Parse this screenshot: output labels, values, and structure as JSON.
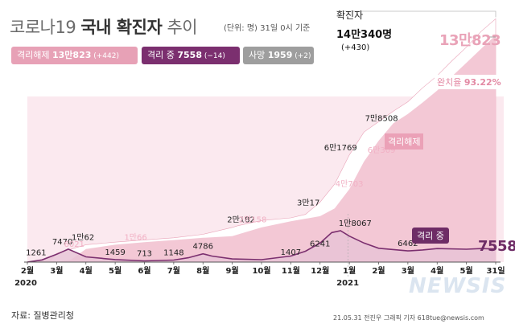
{
  "header": {
    "title_light1": "코로나19 ",
    "title_bold": "국내 확진자",
    "title_light2": " 추이",
    "subtitle": "(단위: 명)  31일 0시 기준"
  },
  "legend": {
    "released": {
      "label": "격리해제 ",
      "value": "13만823",
      "diff": " (+442)",
      "color": "#e7a1b6"
    },
    "isolated": {
      "label": "격리 중 ",
      "value": "7558",
      "diff": " (−14)",
      "color": "#7b2f6f"
    },
    "deaths": {
      "label": "사망 ",
      "value": "1959",
      "diff": " (+2)",
      "color": "#9e9e9e"
    }
  },
  "confirmed": {
    "label": "확진자",
    "value": "14만340명",
    "diff": "(+430)"
  },
  "released_total": "13만823",
  "recovery_ratio": {
    "label": "완치율 ",
    "value": "93.22%"
  },
  "released_series_tag": "격리해제",
  "isolated_series_tag": "격리 중",
  "isolated_end": "7558",
  "source": "자료: 질병관리청",
  "credit": "21.05.31  전진우 그래픽 기자  618tue@newsis.com",
  "watermark": "NEWSIS",
  "chart_data": {
    "type": "area",
    "x_ticks": [
      "2월",
      "3월",
      "4월",
      "5월",
      "6월",
      "7월",
      "8월",
      "9월",
      "10월",
      "11월",
      "12월",
      "1월",
      "2월",
      "3월",
      "4월",
      "5월",
      "31일"
    ],
    "year_labels": [
      "2020",
      "2021"
    ],
    "series": [
      {
        "name": "확진자",
        "color": "#ffffff",
        "x": [
          0,
          0.8,
          1,
          2,
          3,
          4,
          5,
          6,
          7,
          7.2,
          8,
          9,
          9.5,
          10,
          10.5,
          11,
          11.5,
          12,
          12.5,
          13,
          13.5,
          14,
          14.5,
          15,
          15.5,
          16
        ],
        "values": [
          0,
          1200,
          5000,
          10000,
          11500,
          12800,
          14000,
          16000,
          20000,
          21000,
          24000,
          25500,
          27500,
          34600,
          45000,
          61800,
          75000,
          81000,
          87000,
          92500,
          100500,
          107500,
          116000,
          124000,
          133000,
          140340
        ]
      },
      {
        "name": "격리해제",
        "color": "#f2c5d3",
        "x": [
          0,
          1,
          1.5,
          2,
          3,
          4,
          5,
          6,
          7,
          8,
          9,
          10,
          10.5,
          11,
          11.5,
          12,
          12.5,
          13,
          13.5,
          14,
          14.5,
          15,
          15.5,
          16
        ],
        "values": [
          0,
          100,
          1500,
          7500,
          10000,
          11500,
          12700,
          14000,
          15000,
          20000,
          23500,
          26500,
          31000,
          42000,
          58000,
          70000,
          80000,
          85500,
          92000,
          99000,
          107000,
          115000,
          123000,
          130823
        ]
      },
      {
        "name": "격리 중",
        "color": "#7b2f6f",
        "x": [
          0,
          0.5,
          1,
          1.4,
          2,
          3,
          4,
          5,
          5.5,
          6,
          6.3,
          7,
          8,
          9,
          9.5,
          10,
          10.4,
          10.7,
          11,
          11.5,
          12,
          13,
          13.5,
          14,
          15,
          15.5,
          16
        ],
        "values": [
          0,
          1261,
          4500,
          7470,
          3000,
          1459,
          713,
          1148,
          2500,
          4786,
          3500,
          1800,
          1407,
          3500,
          6241,
          11000,
          17000,
          18067,
          15000,
          11000,
          8000,
          6462,
          7000,
          7800,
          7400,
          7800,
          7558
        ]
      }
    ],
    "peak_labels": [
      {
        "x": 0.3,
        "y": 1261,
        "label": "1261"
      },
      {
        "x": 1.2,
        "y": 7470,
        "label": "7470"
      },
      {
        "x": 1.6,
        "y": 6021,
        "label": "6021",
        "faint": true
      },
      {
        "x": 1.9,
        "y": 10062,
        "label": "1만62"
      },
      {
        "x": 3.7,
        "y": 10066,
        "label": "1만66",
        "faint": true
      },
      {
        "x": 3,
        "y": 1459,
        "label": "1459"
      },
      {
        "x": 4,
        "y": 713,
        "label": "713"
      },
      {
        "x": 5,
        "y": 1148,
        "label": "1148"
      },
      {
        "x": 7.3,
        "y": 20182,
        "label": "2만182"
      },
      {
        "x": 7.7,
        "y": 20158,
        "label": "2만158",
        "faint": true
      },
      {
        "x": 6,
        "y": 4786,
        "label": "4786"
      },
      {
        "x": 9,
        "y": 1407,
        "label": "1407"
      },
      {
        "x": 9.6,
        "y": 30017,
        "label": "3만17"
      },
      {
        "x": 10,
        "y": 6241,
        "label": "6241"
      },
      {
        "x": 10.7,
        "y": 61769,
        "label": "6만1769"
      },
      {
        "x": 11,
        "y": 40703,
        "label": "4만703",
        "faint": true
      },
      {
        "x": 11.2,
        "y": 18067,
        "label": "1만8067"
      },
      {
        "x": 12.1,
        "y": 78508,
        "label": "7만8508"
      },
      {
        "x": 12.1,
        "y": 60309,
        "label": "6만309",
        "faint": true
      },
      {
        "x": 13,
        "y": 6462,
        "label": "6462"
      }
    ]
  }
}
